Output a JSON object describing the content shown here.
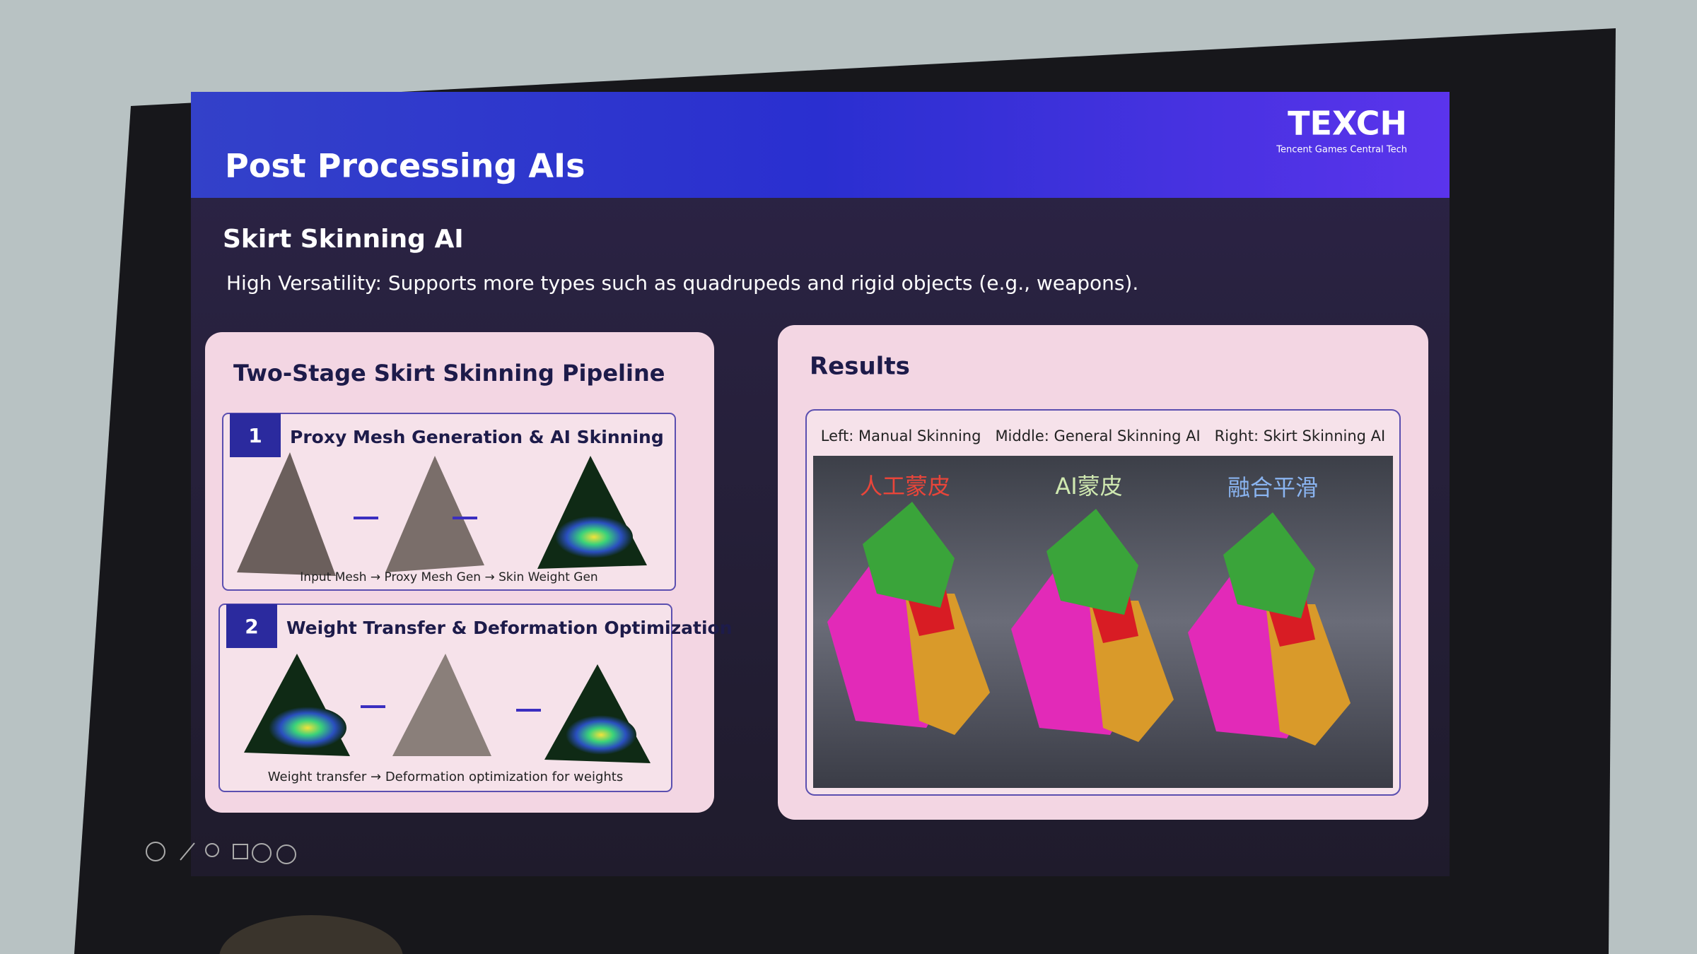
{
  "header": {
    "title": "Post Processing AIs",
    "logo": "TEXCH",
    "logo_subtitle": "Tencent Games Central Tech"
  },
  "subtitle": "Skirt Skinning AI",
  "description": "High Versatility: Supports more types such as quadrupeds and rigid objects (e.g., weapons).",
  "left_panel": {
    "title": "Two-Stage Skirt Skinning Pipeline",
    "steps": [
      {
        "number": "1",
        "title": "Proxy Mesh Generation & AI Skinning",
        "caption": "Input Mesh → Proxy Mesh Gen → Skin Weight Gen"
      },
      {
        "number": "2",
        "title": "Weight Transfer & Deformation Optimization",
        "caption": "Weight transfer → Deformation optimization for weights"
      }
    ]
  },
  "right_panel": {
    "title": "Results",
    "caption": "Left: Manual Skinning   Middle: General Skinning AI   Right: Skirt Skinning AI",
    "labels": [
      "人工蒙皮",
      "AI蒙皮",
      "融合平滑"
    ]
  }
}
